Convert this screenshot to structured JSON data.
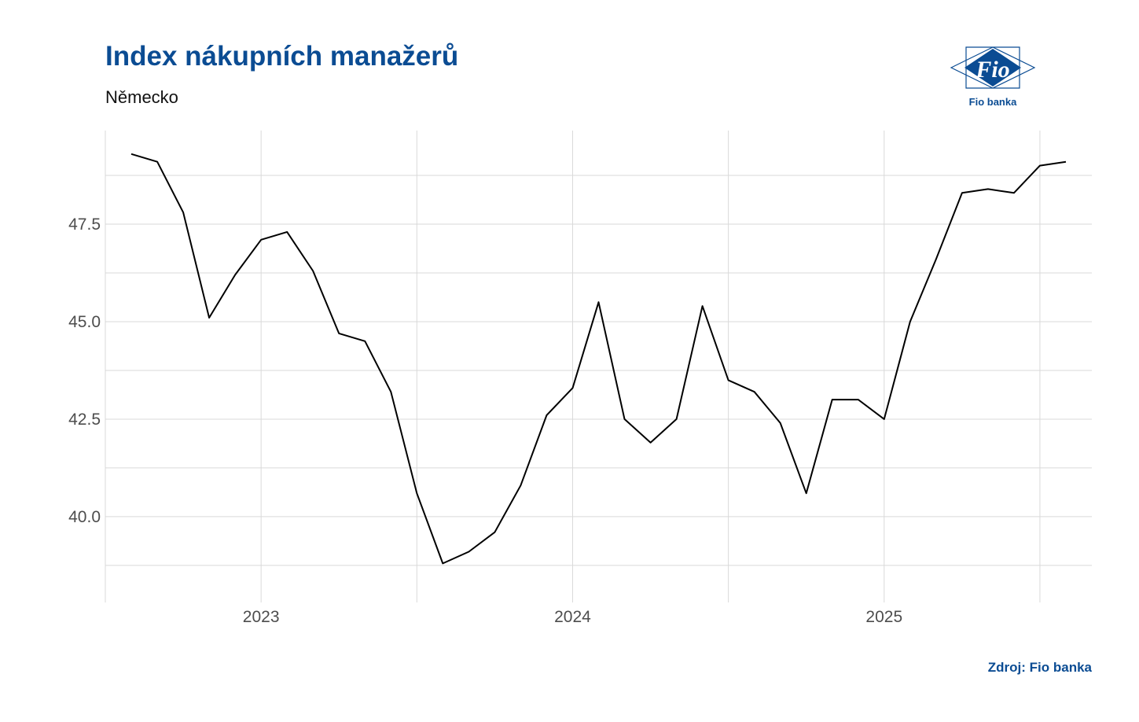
{
  "header": {
    "title": "Index nákupních manažerů",
    "subtitle": "Německo"
  },
  "logo": {
    "mark_text": "Fio",
    "caption": "Fio banka",
    "color": "#0b4c93"
  },
  "footer": {
    "source": "Zdroj: Fio banka"
  },
  "colors": {
    "accent": "#0b4c93",
    "line": "#000000",
    "grid": "#d9d9d9",
    "tick_text": "#4d4d4d"
  },
  "chart_data": {
    "type": "line",
    "title": "Index nákupních manažerů",
    "subtitle": "Německo",
    "xlabel": "",
    "ylabel": "",
    "grid": true,
    "legend": "none",
    "x_tick_labels": [
      "2023",
      "2024",
      "2025"
    ],
    "y_ticks": [
      40.0,
      42.5,
      45.0,
      47.5
    ],
    "y_tick_labels": [
      "40.0",
      "42.5",
      "45.0",
      "47.5"
    ],
    "ylim": [
      37.8,
      49.9
    ],
    "x": [
      "2022-08",
      "2022-09",
      "2022-10",
      "2022-11",
      "2022-12",
      "2023-01",
      "2023-02",
      "2023-03",
      "2023-04",
      "2023-05",
      "2023-06",
      "2023-07",
      "2023-08",
      "2023-09",
      "2023-10",
      "2023-11",
      "2023-12",
      "2024-01",
      "2024-02",
      "2024-03",
      "2024-04",
      "2024-05",
      "2024-06",
      "2024-07",
      "2024-08",
      "2024-09",
      "2024-10",
      "2024-11",
      "2024-12",
      "2025-01",
      "2025-02",
      "2025-03",
      "2025-04",
      "2025-05",
      "2025-06",
      "2025-07",
      "2025-08"
    ],
    "series": [
      {
        "values": [
          49.3,
          49.1,
          47.8,
          45.1,
          46.2,
          47.1,
          47.3,
          46.3,
          44.7,
          44.5,
          43.2,
          40.6,
          38.8,
          39.1,
          39.6,
          40.8,
          42.6,
          43.3,
          45.5,
          42.5,
          41.9,
          42.5,
          45.4,
          43.5,
          43.2,
          42.4,
          40.6,
          43.0,
          43.0,
          42.5,
          45.0,
          46.6,
          48.3,
          48.4,
          48.3,
          49.0,
          49.1
        ]
      }
    ]
  }
}
